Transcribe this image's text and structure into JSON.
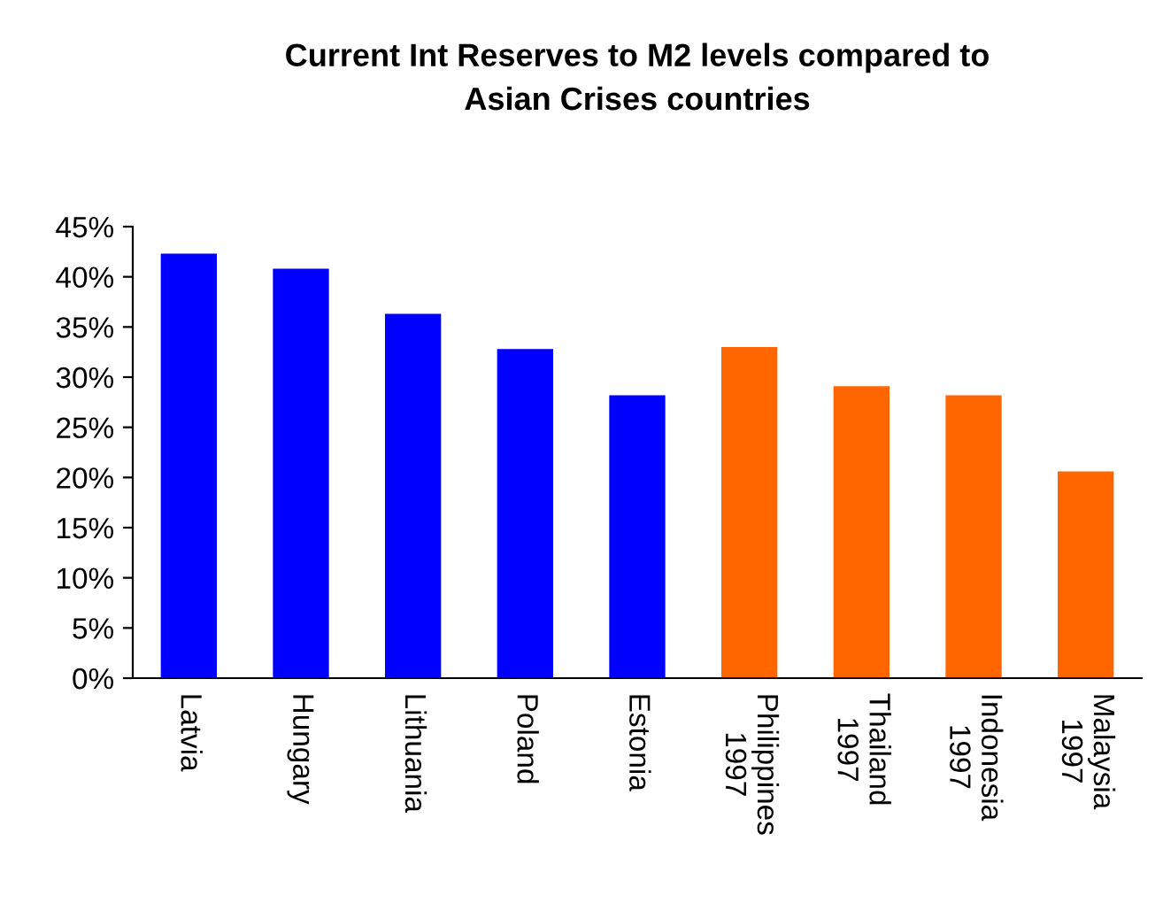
{
  "chart_data": {
    "type": "bar",
    "title": "Current Int Reserves to M2 levels compared to\nAsian Crises countries",
    "categories": [
      "Latvia",
      "Hungary",
      "Lithuania",
      "Poland",
      "Estonia",
      "Philippines\n1997",
      "Thailand\n1997",
      "Indonesia\n1997",
      "Malaysia\n1997"
    ],
    "values": [
      42.3,
      40.8,
      36.3,
      32.8,
      28.2,
      33.0,
      29.1,
      28.2,
      20.6
    ],
    "colors": [
      "#0000ff",
      "#0000ff",
      "#0000ff",
      "#0000ff",
      "#0000ff",
      "#ff6600",
      "#ff6600",
      "#ff6600",
      "#ff6600"
    ],
    "ylim": [
      0,
      45
    ],
    "yticks": [
      {
        "value": 0,
        "label": "0%"
      },
      {
        "value": 5,
        "label": "5%"
      },
      {
        "value": 10,
        "label": "10%"
      },
      {
        "value": 15,
        "label": "15%"
      },
      {
        "value": 20,
        "label": "20%"
      },
      {
        "value": 25,
        "label": "25%"
      },
      {
        "value": 30,
        "label": "30%"
      },
      {
        "value": 35,
        "label": "35%"
      },
      {
        "value": 40,
        "label": "40%"
      },
      {
        "value": 45,
        "label": "45%"
      }
    ],
    "grid": false,
    "legend": false
  }
}
